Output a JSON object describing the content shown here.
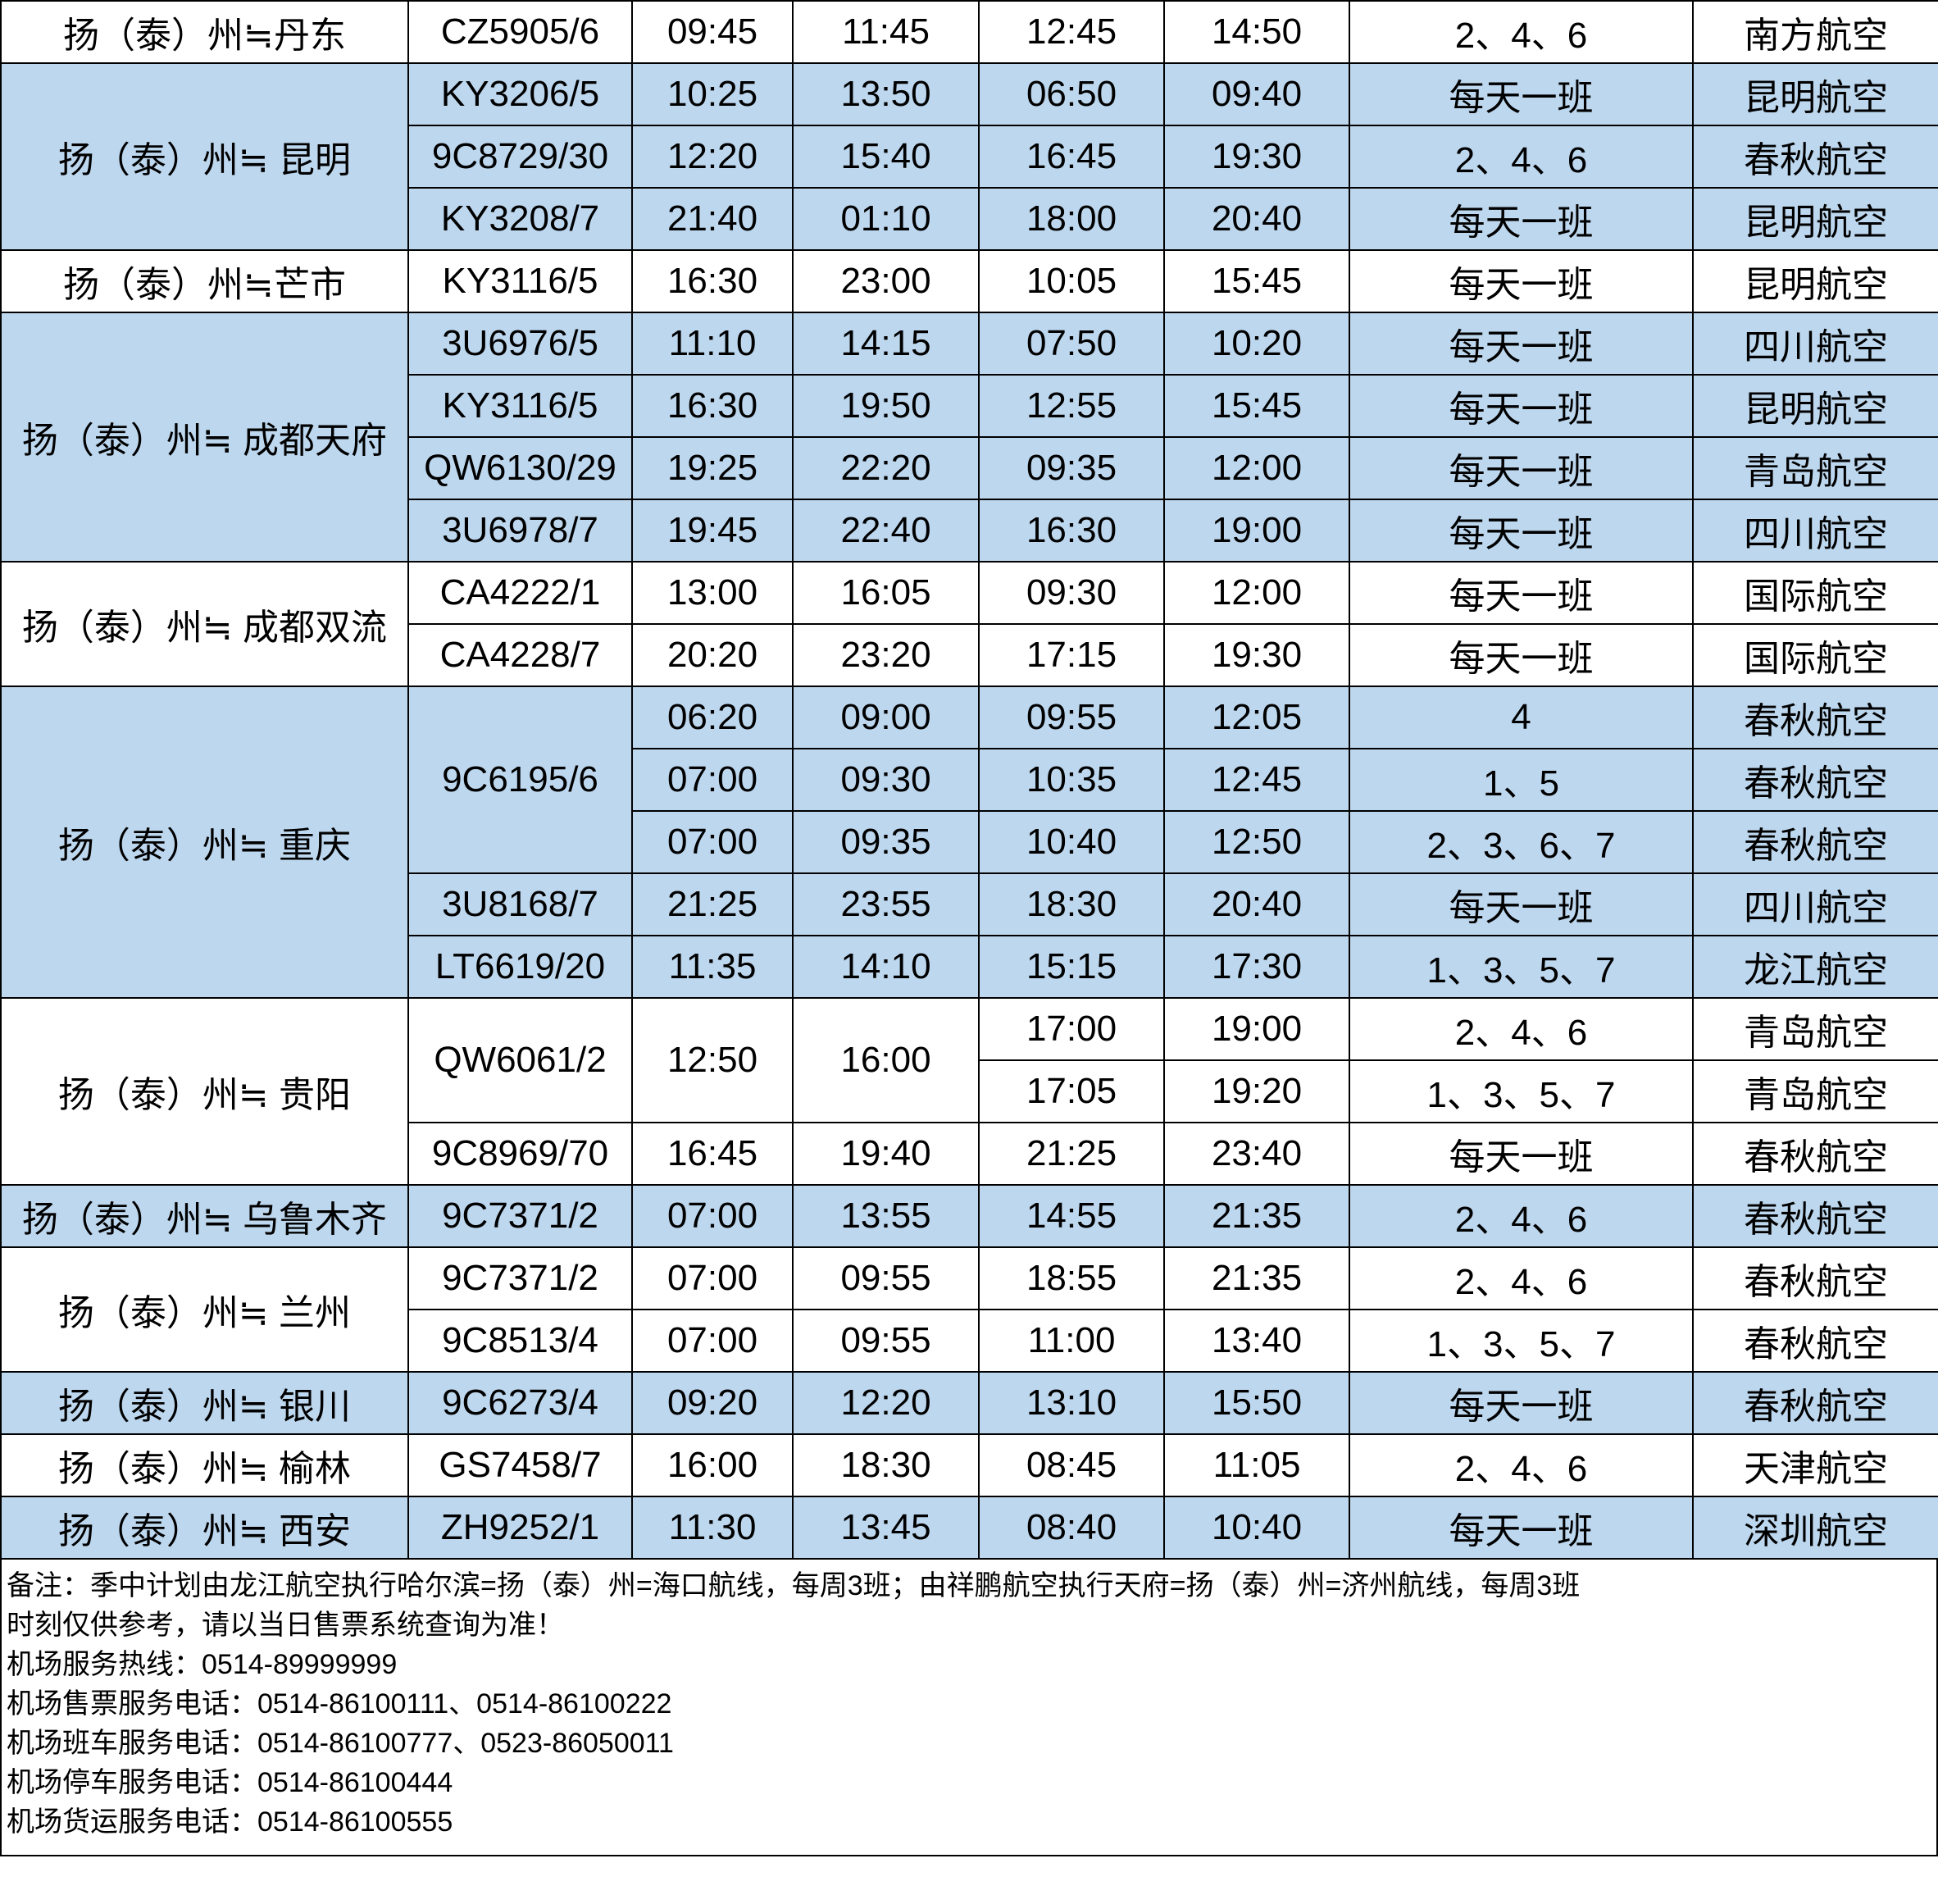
{
  "table": {
    "groups": [
      {
        "route": "扬（泰）州≒丹东",
        "flights": [
          {
            "no": "CZ5905/6",
            "legs": [
              [
                "09:45",
                "11:45",
                "12:45",
                "14:50",
                "2、4、6",
                "南方航空"
              ]
            ]
          }
        ]
      },
      {
        "route": "扬（泰）州≒ 昆明",
        "flights": [
          {
            "no": "KY3206/5",
            "legs": [
              [
                "10:25",
                "13:50",
                "06:50",
                "09:40",
                "每天一班",
                "昆明航空"
              ]
            ]
          },
          {
            "no": "9C8729/30",
            "legs": [
              [
                "12:20",
                "15:40",
                "16:45",
                "19:30",
                "2、4、6",
                "春秋航空"
              ]
            ]
          },
          {
            "no": "KY3208/7",
            "legs": [
              [
                "21:40",
                "01:10",
                "18:00",
                "20:40",
                "每天一班",
                "昆明航空"
              ]
            ]
          }
        ]
      },
      {
        "route": "扬（泰）州≒芒市",
        "flights": [
          {
            "no": "KY3116/5",
            "legs": [
              [
                "16:30",
                "23:00",
                "10:05",
                "15:45",
                "每天一班",
                "昆明航空"
              ]
            ]
          }
        ]
      },
      {
        "route": "扬（泰）州≒ 成都天府",
        "flights": [
          {
            "no": "3U6976/5",
            "legs": [
              [
                "11:10",
                "14:15",
                "07:50",
                "10:20",
                "每天一班",
                "四川航空"
              ]
            ]
          },
          {
            "no": "KY3116/5",
            "legs": [
              [
                "16:30",
                "19:50",
                "12:55",
                "15:45",
                "每天一班",
                "昆明航空"
              ]
            ]
          },
          {
            "no": "QW6130/29",
            "legs": [
              [
                "19:25",
                "22:20",
                "09:35",
                "12:00",
                "每天一班",
                "青岛航空"
              ]
            ]
          },
          {
            "no": "3U6978/7",
            "legs": [
              [
                "19:45",
                "22:40",
                "16:30",
                "19:00",
                "每天一班",
                "四川航空"
              ]
            ]
          }
        ]
      },
      {
        "route": "扬（泰）州≒ 成都双流",
        "flights": [
          {
            "no": "CA4222/1",
            "legs": [
              [
                "13:00",
                "16:05",
                "09:30",
                "12:00",
                "每天一班",
                "国际航空"
              ]
            ]
          },
          {
            "no": "CA4228/7",
            "legs": [
              [
                "20:20",
                "23:20",
                "17:15",
                "19:30",
                "每天一班",
                "国际航空"
              ]
            ]
          }
        ]
      },
      {
        "route": "扬（泰）州≒ 重庆",
        "flights": [
          {
            "no": "9C6195/6",
            "legs": [
              [
                "06:20",
                "09:00",
                "09:55",
                "12:05",
                "4",
                "春秋航空"
              ],
              [
                "07:00",
                "09:30",
                "10:35",
                "12:45",
                "1、5",
                "春秋航空"
              ],
              [
                "07:00",
                "09:35",
                "10:40",
                "12:50",
                "2、3、6、7",
                "春秋航空"
              ]
            ]
          },
          {
            "no": "3U8168/7",
            "legs": [
              [
                "21:25",
                "23:55",
                "18:30",
                "20:40",
                "每天一班",
                "四川航空"
              ]
            ]
          },
          {
            "no": "LT6619/20",
            "legs": [
              [
                "11:35",
                "14:10",
                "15:15",
                "17:30",
                "1、3、5、7",
                "龙江航空"
              ]
            ]
          }
        ]
      },
      {
        "route": "扬（泰）州≒ 贵阳",
        "flights": [
          {
            "no": "QW6061/2",
            "out": [
              "12:50",
              "16:00"
            ],
            "legs": [
              [
                "17:00",
                "19:00",
                "2、4、6",
                "青岛航空"
              ],
              [
                "17:05",
                "19:20",
                "1、3、5、7",
                "青岛航空"
              ]
            ]
          },
          {
            "no": "9C8969/70",
            "legs": [
              [
                "16:45",
                "19:40",
                "21:25",
                "23:40",
                "每天一班",
                "春秋航空"
              ]
            ]
          }
        ]
      },
      {
        "route": "扬（泰）州≒ 乌鲁木齐",
        "flights": [
          {
            "no": "9C7371/2",
            "legs": [
              [
                "07:00",
                "13:55",
                "14:55",
                "21:35",
                "2、4、6",
                "春秋航空"
              ]
            ]
          }
        ]
      },
      {
        "route": "扬（泰）州≒ 兰州",
        "flights": [
          {
            "no": "9C7371/2",
            "legs": [
              [
                "07:00",
                "09:55",
                "18:55",
                "21:35",
                "2、4、6",
                "春秋航空"
              ]
            ]
          },
          {
            "no": "9C8513/4",
            "legs": [
              [
                "07:00",
                "09:55",
                "11:00",
                "13:40",
                "1、3、5、7",
                "春秋航空"
              ]
            ]
          }
        ]
      },
      {
        "route": "扬（泰）州≒ 银川",
        "flights": [
          {
            "no": "9C6273/4",
            "legs": [
              [
                "09:20",
                "12:20",
                "13:10",
                "15:50",
                "每天一班",
                "春秋航空"
              ]
            ]
          }
        ]
      },
      {
        "route": "扬（泰）州≒ 榆林",
        "flights": [
          {
            "no": "GS7458/7",
            "legs": [
              [
                "16:00",
                "18:30",
                "08:45",
                "11:05",
                "2、4、6",
                "天津航空"
              ]
            ]
          }
        ]
      },
      {
        "route": "扬（泰）州≒ 西安",
        "flights": [
          {
            "no": "ZH9252/1",
            "legs": [
              [
                "11:30",
                "13:45",
                "08:40",
                "10:40",
                "每天一班",
                "深圳航空"
              ]
            ]
          }
        ]
      }
    ]
  },
  "notes": [
    "备注：季中计划由龙江航空执行哈尔滨=扬（泰）州=海口航线，每周3班；由祥鹏航空执行天府=扬（泰）州=济州航线，每周3班",
    "时刻仅供参考，请以当日售票系统查询为准！",
    "机场服务热线：0514-89999999",
    "机场售票服务电话：0514-86100111、0514-86100222",
    "机场班车服务电话：0514-86100777、0523-86050011",
    "机场停车服务电话：0514-86100444",
    "机场货运服务电话：0514-86100555"
  ]
}
